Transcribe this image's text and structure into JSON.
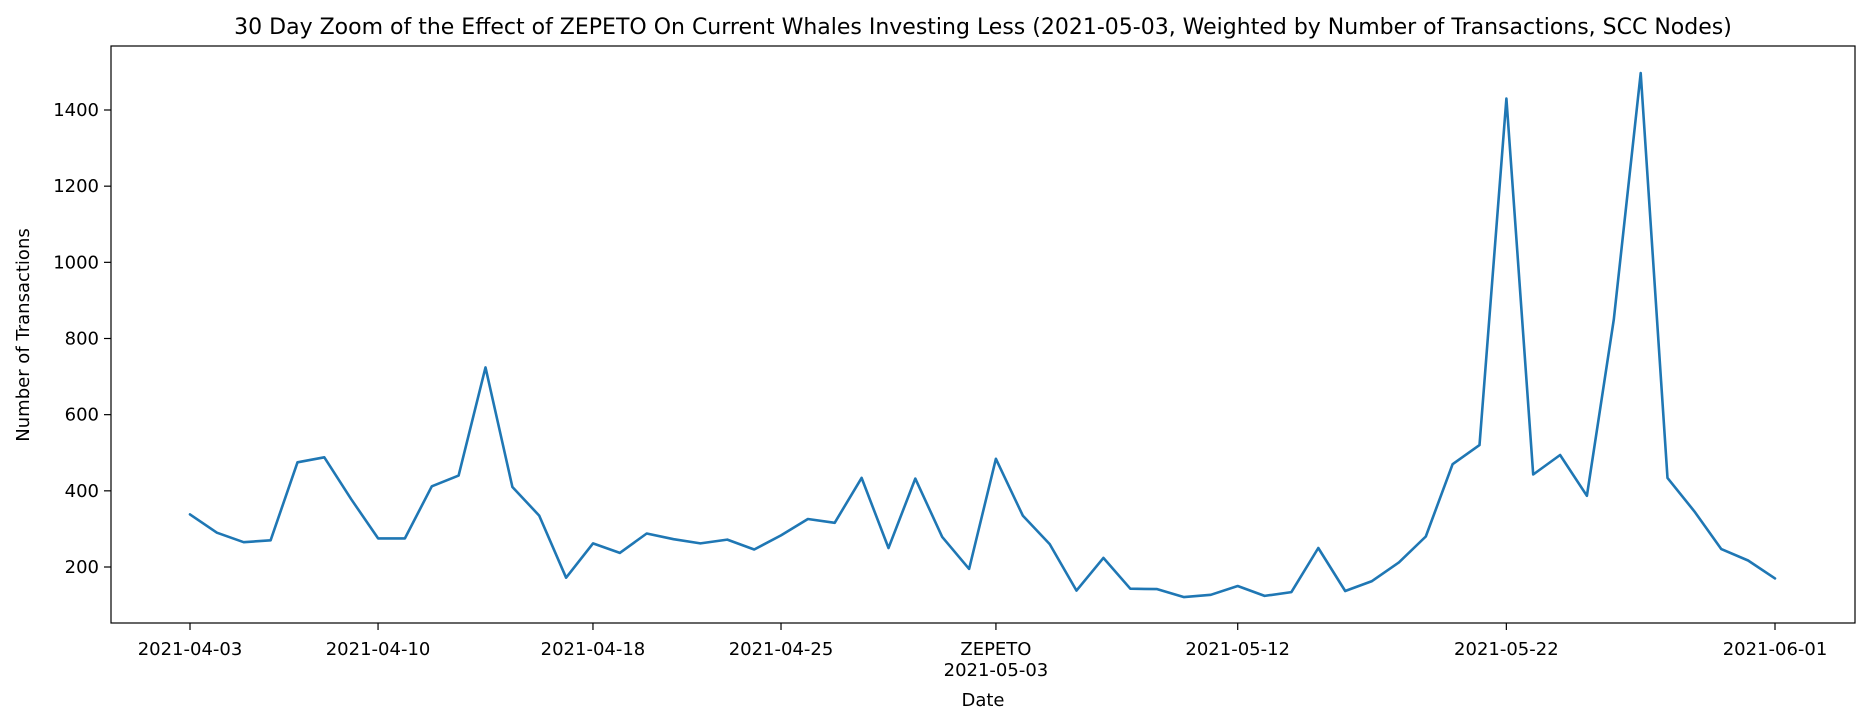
{
  "chart_data": {
    "type": "line",
    "title": "30 Day Zoom of the Effect of ZEPETO On Current Whales Investing Less (2021-05-03, Weighted by Number of Transactions, SCC Nodes)",
    "xlabel": "Date",
    "ylabel": "Number of Transactions",
    "ylim": [
      100,
      1500
    ],
    "xlim": [
      "2021-04-03",
      "2021-06-01"
    ],
    "grid": false,
    "y_ticks": [
      200,
      400,
      600,
      800,
      1000,
      1200,
      1400
    ],
    "x_ticks": [
      {
        "date": "2021-04-03",
        "label": "2021-04-03"
      },
      {
        "date": "2021-04-10",
        "label": "2021-04-10"
      },
      {
        "date": "2021-04-18",
        "label": "2021-04-18"
      },
      {
        "date": "2021-04-25",
        "label": "2021-04-25"
      },
      {
        "date": "2021-05-03",
        "label": "2021-05-03"
      },
      {
        "date": "2021-05-12",
        "label": "2021-05-12"
      },
      {
        "date": "2021-05-22",
        "label": "2021-05-22"
      },
      {
        "date": "2021-06-01",
        "label": "2021-06-01"
      }
    ],
    "annotations": [
      {
        "date": "2021-05-03",
        "text": "ZEPETO"
      }
    ],
    "series": [
      {
        "color": "#1f77b4",
        "x": [
          "2021-04-03",
          "2021-04-04",
          "2021-04-05",
          "2021-04-06",
          "2021-04-07",
          "2021-04-08",
          "2021-04-09",
          "2021-04-10",
          "2021-04-11",
          "2021-04-12",
          "2021-04-13",
          "2021-04-14",
          "2021-04-15",
          "2021-04-16",
          "2021-04-17",
          "2021-04-18",
          "2021-04-19",
          "2021-04-20",
          "2021-04-21",
          "2021-04-22",
          "2021-04-23",
          "2021-04-24",
          "2021-04-25",
          "2021-04-26",
          "2021-04-27",
          "2021-04-28",
          "2021-04-29",
          "2021-04-30",
          "2021-05-01",
          "2021-05-02",
          "2021-05-03",
          "2021-05-04",
          "2021-05-05",
          "2021-05-06",
          "2021-05-07",
          "2021-05-08",
          "2021-05-09",
          "2021-05-10",
          "2021-05-11",
          "2021-05-12",
          "2021-05-13",
          "2021-05-14",
          "2021-05-15",
          "2021-05-16",
          "2021-05-17",
          "2021-05-18",
          "2021-05-19",
          "2021-05-20",
          "2021-05-21",
          "2021-05-22",
          "2021-05-23",
          "2021-05-24",
          "2021-05-25",
          "2021-05-26",
          "2021-05-27",
          "2021-05-28",
          "2021-05-29",
          "2021-05-30",
          "2021-05-31",
          "2021-06-01"
        ],
        "values": [
          338,
          290,
          265,
          270,
          475,
          488,
          378,
          275,
          275,
          412,
          440,
          724,
          410,
          335,
          172,
          262,
          237,
          288,
          273,
          262,
          272,
          246,
          283,
          326,
          316,
          434,
          250,
          432,
          279,
          195,
          484,
          335,
          260,
          138,
          224,
          143,
          142,
          121,
          127,
          150,
          124,
          134,
          250,
          137,
          163,
          212,
          280,
          470,
          520,
          1430,
          443,
          494,
          387,
          850,
          1497,
          434,
          346,
          247,
          217,
          170
        ]
      }
    ]
  }
}
